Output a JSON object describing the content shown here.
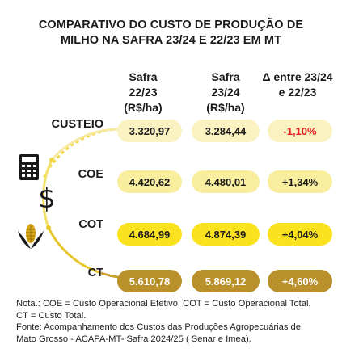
{
  "title": {
    "line1": "COMPARATIVO DO CUSTO DE PRODUÇÃO DE",
    "line2": "MILHO NA SAFRA 23/24 E 22/23 EM MT"
  },
  "columns": [
    {
      "line1": "Safra",
      "line2": "22/23",
      "line3": "(R$/ha)"
    },
    {
      "line1": "Safra",
      "line2": "23/24",
      "line3": "(R$/ha)"
    },
    {
      "line1": "Δ entre 23/24",
      "line2": "e 22/23"
    }
  ],
  "rows": [
    {
      "label": "CUSTEIO",
      "safra_22_23": "3.320,97",
      "safra_23_24": "3.284,44",
      "delta": "-1,10%"
    },
    {
      "label": "COE",
      "safra_22_23": "4.420,62",
      "safra_23_24": "4.480,01",
      "delta": "+1,34%"
    },
    {
      "label": "COT",
      "safra_22_23": "4.684,99",
      "safra_23_24": "4.874,39",
      "delta": "+4,04%"
    },
    {
      "label": "CT",
      "safra_22_23": "5.610,78",
      "safra_23_24": "5.869,12",
      "delta": "+4,60%"
    }
  ],
  "icons": [
    "calculator-icon",
    "dollar-sign-icon",
    "corn-icon"
  ],
  "colors": {
    "custeio": "#fbf2c2",
    "coe": "#f9ee9e",
    "cot": "#fae21f",
    "ct": "#b9902a",
    "negative": "#e11d1d"
  },
  "notes": {
    "line1": "Nota.: COE = Custo Operacional Efetivo, COT = Custo Operacional Total,",
    "line2": "CT = Custo Total.",
    "line3": "Fonte: Acompanhamento dos Custos das Produções Agropecuárias de",
    "line4": "Mato Grosso - ACAPA-MT- Safra 2024/25 ( Senar e Imea)."
  }
}
